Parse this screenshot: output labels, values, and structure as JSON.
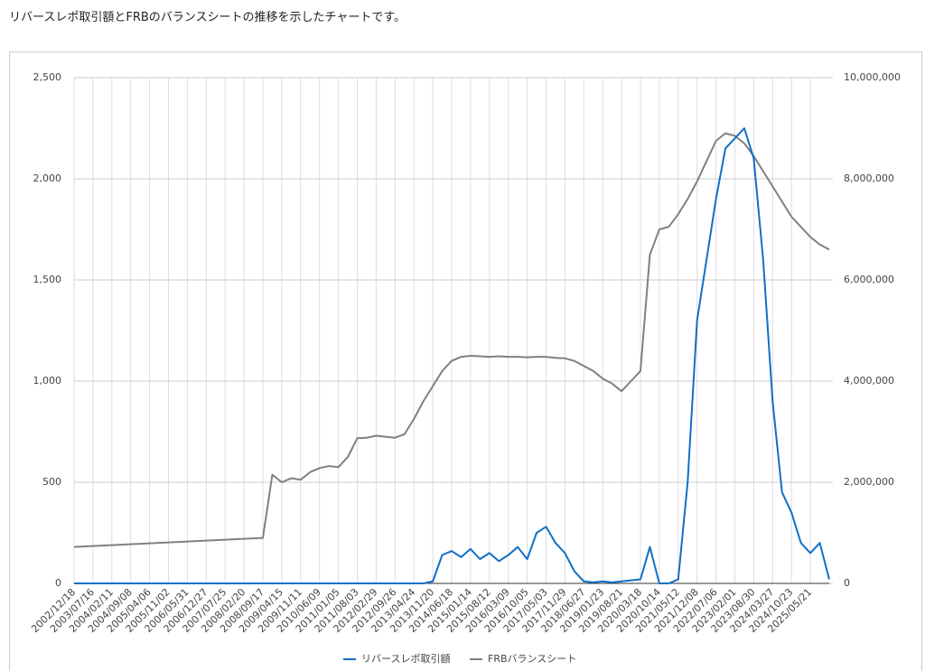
{
  "description": "リバースレポ取引額とFRBのバランスシートの推移を示したチャートです。",
  "chart_data": {
    "type": "line",
    "categories": [
      "2002/12/18",
      null,
      "2003/07/16",
      null,
      "2004/02/11",
      null,
      "2004/09/08",
      null,
      "2005/04/06",
      null,
      "2005/11/02",
      null,
      "2006/05/31",
      null,
      "2006/12/27",
      null,
      "2007/07/25",
      null,
      "2008/02/20",
      null,
      "2008/09/17",
      null,
      "2009/04/15",
      null,
      "2009/11/11",
      null,
      "2010/06/09",
      null,
      "2011/01/05",
      null,
      "2011/08/03",
      null,
      "2012/02/29",
      null,
      "2012/09/26",
      null,
      "2013/04/24",
      null,
      "2013/11/20",
      null,
      "2014/06/18",
      null,
      "2015/01/14",
      null,
      "2015/08/12",
      null,
      "2016/03/09",
      null,
      "2016/10/05",
      null,
      "2017/05/03",
      null,
      "2017/11/29",
      null,
      "2018/06/27",
      null,
      "2019/01/23",
      null,
      "2019/08/21",
      null,
      "2020/03/18",
      null,
      "2020/10/14",
      null,
      "2021/05/12",
      null,
      "2021/12/08",
      null,
      "2022/07/06",
      null,
      "2023/02/01",
      null,
      "2023/08/30",
      null,
      "2024/03/27",
      null,
      "2024/10/23",
      null,
      "2025/05/21",
      null,
      null
    ],
    "series": [
      {
        "name": "リバースレポ取引額",
        "color": "#0f6fc6",
        "axis": "y",
        "values": [
          0,
          0,
          0,
          0,
          0,
          0,
          0,
          0,
          0,
          0,
          0,
          0,
          0,
          0,
          0,
          0,
          0,
          0,
          0,
          0,
          0,
          0,
          0,
          0,
          0,
          0,
          0,
          0,
          0,
          0,
          0,
          0,
          0,
          0,
          0,
          0,
          0,
          0,
          10,
          140,
          160,
          130,
          170,
          120,
          150,
          110,
          140,
          180,
          120,
          250,
          280,
          200,
          150,
          60,
          10,
          5,
          10,
          5,
          10,
          15,
          20,
          180,
          0,
          0,
          20,
          500,
          1300,
          1600,
          1900,
          2150,
          2200,
          2250,
          2100,
          1600,
          900,
          450,
          350,
          200,
          150,
          200,
          20
        ]
      },
      {
        "name": "FRBバランスシート",
        "color": "#808080",
        "axis": "y2",
        "values": [
          720000,
          729000,
          738000,
          747000,
          756000,
          765000,
          774000,
          783000,
          792000,
          801000,
          810000,
          819000,
          828000,
          837000,
          846000,
          855000,
          864000,
          873000,
          882000,
          891000,
          900000,
          2150000,
          2000000,
          2080000,
          2050000,
          2200000,
          2280000,
          2320000,
          2300000,
          2500000,
          2870000,
          2880000,
          2920000,
          2900000,
          2880000,
          2950000,
          3250000,
          3600000,
          3900000,
          4200000,
          4400000,
          4480000,
          4500000,
          4490000,
          4480000,
          4490000,
          4480000,
          4480000,
          4470000,
          4480000,
          4480000,
          4460000,
          4450000,
          4400000,
          4300000,
          4200000,
          4050000,
          3950000,
          3800000,
          4000000,
          4200000,
          6500000,
          7000000,
          7050000,
          7300000,
          7600000,
          7950000,
          8350000,
          8750000,
          8900000,
          8850000,
          8700000,
          8450000,
          8150000,
          7850000,
          7550000,
          7250000,
          7050000,
          6850000,
          6700000,
          6600000
        ]
      }
    ],
    "ylim": [
      0,
      2500
    ],
    "yticks": [
      0,
      500,
      {
        "value": 1000,
        "label": "1,000"
      },
      {
        "value": 1500,
        "label": "1,500"
      },
      {
        "value": 2000,
        "label": "2,000"
      },
      {
        "value": 2500,
        "label": "2,500"
      }
    ],
    "y2lim": [
      0,
      10000000
    ],
    "y2ticks": [
      0,
      {
        "value": 2000000,
        "label": "2,000,000"
      },
      {
        "value": 4000000,
        "label": "4,000,000"
      },
      {
        "value": 6000000,
        "label": "6,000,000"
      },
      {
        "value": 8000000,
        "label": "8,000,000"
      },
      {
        "value": 10000000,
        "label": "10,000,000"
      }
    ],
    "grid": true,
    "legend": "bottom",
    "yaxis_color": "#0f6fc6",
    "y2axis_color": "#555555"
  }
}
